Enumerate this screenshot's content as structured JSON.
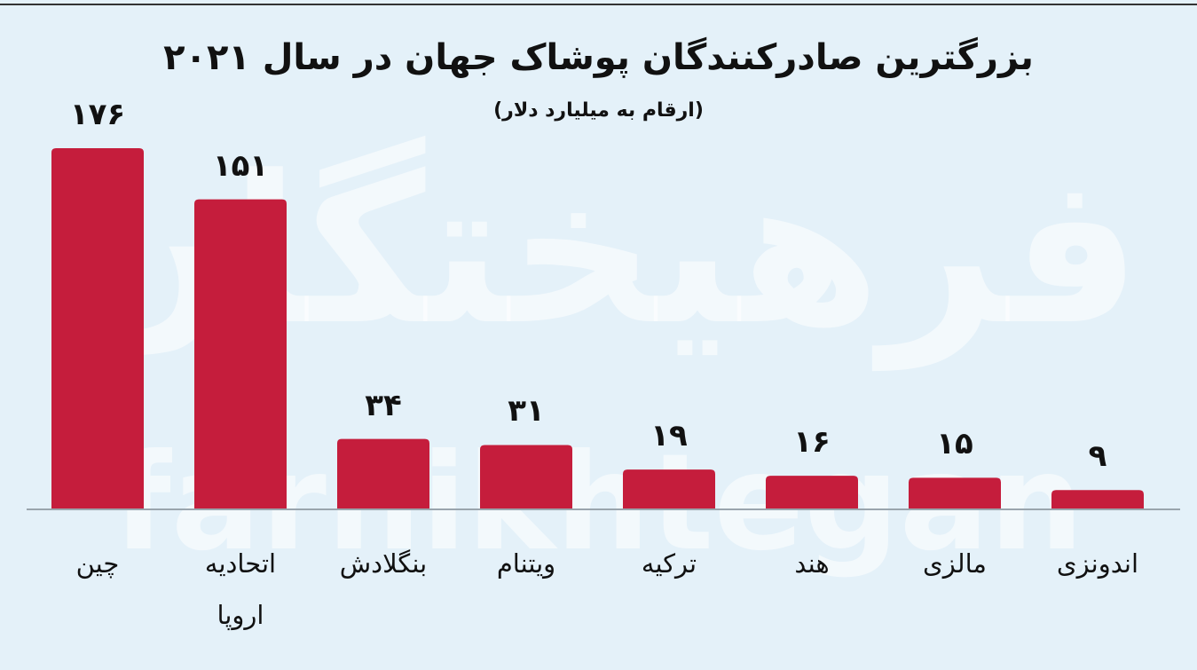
{
  "chart_data": {
    "type": "bar",
    "title": "بزرگترین صادرکنندگان پوشاک جهان در سال ۲۰۲۱",
    "subtitle": "(ارقام به میلیارد دلار)",
    "watermark": [
      "فرهیختگان",
      "farhikhtegan"
    ],
    "categories": [
      "چین",
      "اتحادیه اروپا",
      "بنگلادش",
      "ویتنام",
      "ترکیه",
      "هند",
      "مالزی",
      "اندونزی"
    ],
    "values": [
      176,
      151,
      34,
      31,
      19,
      16,
      15,
      9
    ],
    "value_labels": [
      "۱۷۶",
      "۱۵۱",
      "۳۴",
      "۳۱",
      "۱۹",
      "۱۶",
      "۱۵",
      "۹"
    ],
    "color": "#c51d3c"
  }
}
